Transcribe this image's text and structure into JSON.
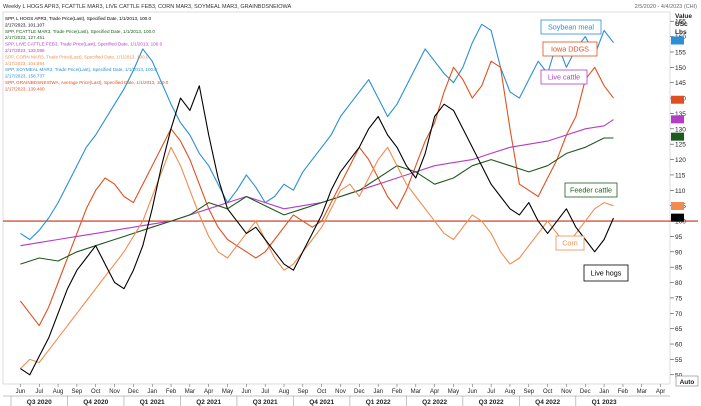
{
  "chart_data": {
    "type": "line",
    "header": {
      "left": "Weekly L HOGS APR3, FCATTLE MAR3, LIVE CATTLE FEB3, CORN MAR3, SOYMEAL MAR3, GRAINBDSNEIOWA",
      "right": "2/5/2020 - 4/4/2023 (CHI)"
    },
    "legend_lines": [
      {
        "text": "SPP, L HOGS APR3, Trade Price(Last), Specified Date, 1/1/2013, 100.0",
        "color": "#000000"
      },
      {
        "text": "2/17/2023, 101.107",
        "color": "#000000"
      },
      {
        "text": "SPP, FCATTLE MAR3, Trade Price(Last), Specified Date, 1/1/2013, 100.0",
        "color": "#1e5a1e"
      },
      {
        "text": "2/17/2023, 127.451",
        "color": "#1e5a1e"
      },
      {
        "text": "SPP, LIVE CATTLE FEB3, Trade Price(Last), Specified Date, 1/1/2013, 100.0",
        "color": "#b43cc8"
      },
      {
        "text": "2/17/2023, 133.086",
        "color": "#b43cc8"
      },
      {
        "text": "SPP, CORN MAR3, Trade Price(Last), Specified Date, 1/1/2013, 100.0",
        "color": "#f08c50"
      },
      {
        "text": "2/17/2023, 104.894",
        "color": "#f08c50"
      },
      {
        "text": "SPP, SOYMEAL MAR3, Trade Price(Last), Specified Date, 1/1/2013, 100.0",
        "color": "#2a8fd6"
      },
      {
        "text": "2/17/2023, 158.737",
        "color": "#2a8fd6"
      },
      {
        "text": "SPP, GRAINBDSNEIOWA, Average Price(Last), Specified Date, 1/1/2013, 100.0",
        "color": "#e0501e"
      },
      {
        "text": "2/17/2023, 139.460",
        "color": "#e0501e"
      }
    ],
    "y_axis": {
      "title_lines": [
        "Value",
        "USc",
        "Lbs"
      ],
      "ylim": [
        47,
        168
      ],
      "ticks": [
        50,
        55,
        60,
        65,
        70,
        75,
        80,
        85,
        90,
        95,
        100,
        105,
        110,
        115,
        120,
        125,
        130,
        135,
        140,
        145,
        150,
        155,
        160,
        165
      ]
    },
    "x_axis": {
      "months": [
        "Jun",
        "Jul",
        "Aug",
        "Sep",
        "Oct",
        "Nov",
        "Dec",
        "Jan",
        "Feb",
        "Mar",
        "Apr",
        "May",
        "Jun",
        "Jul",
        "Aug",
        "Sep",
        "Oct",
        "Nov",
        "Dec",
        "Jan",
        "Feb",
        "Mar",
        "Apr",
        "May",
        "Jun",
        "Jul",
        "Aug",
        "Sep",
        "Oct",
        "Nov",
        "Dec",
        "Jan",
        "Feb",
        "Mar",
        "Apr"
      ],
      "quarters": [
        {
          "label": "Q3 2020",
          "start": 0,
          "end": 3
        },
        {
          "label": "Q4 2020",
          "start": 3,
          "end": 6
        },
        {
          "label": "Q1 2021",
          "start": 6,
          "end": 9
        },
        {
          "label": "Q2 2021",
          "start": 9,
          "end": 12
        },
        {
          "label": "Q3 2021",
          "start": 12,
          "end": 15
        },
        {
          "label": "Q4 2021",
          "start": 15,
          "end": 18
        },
        {
          "label": "Q1 2022",
          "start": 18,
          "end": 21
        },
        {
          "label": "Q2 2022",
          "start": 21,
          "end": 24
        },
        {
          "label": "Q3 2022",
          "start": 24,
          "end": 27
        },
        {
          "label": "Q4 2022",
          "start": 27,
          "end": 30
        },
        {
          "label": "Q1 2023",
          "start": 30,
          "end": 33
        }
      ],
      "auto_label": "Auto"
    },
    "reference_line": {
      "value": 100,
      "color": "#c83214"
    },
    "annotations": [
      {
        "text": "Soybean meal",
        "color": "#2a8fd6",
        "border": "#2a8fd6"
      },
      {
        "text": "Iowa DDGS",
        "color": "#e0501e",
        "border": "#e0501e"
      },
      {
        "text": "Live cattle",
        "color": "#b43cc8",
        "border": "#b43cc8"
      },
      {
        "text": "Feeder cattle",
        "color": "#1e5a1e",
        "border": "#1e5a1e"
      },
      {
        "text": "Corn",
        "color": "#f08c50",
        "border": "#f08c50"
      },
      {
        "text": "Live hogs",
        "color": "#000000",
        "border": "#000000"
      }
    ],
    "last_values": [
      {
        "series": "Live hogs",
        "value": 101.107
      },
      {
        "series": "Feeder cattle",
        "value": 127.451
      },
      {
        "series": "Live cattle",
        "value": 133.086
      },
      {
        "series": "Corn",
        "value": 104.894
      },
      {
        "series": "Soybean meal",
        "value": 158.737
      },
      {
        "series": "Iowa DDGS",
        "value": 139.46
      }
    ],
    "series": [
      {
        "name": "Soybean meal",
        "color": "#2a8fd6",
        "x": [
          0,
          0.5,
          1,
          1.5,
          2,
          2.5,
          3,
          3.5,
          4,
          4.5,
          5,
          5.5,
          6,
          6.5,
          7,
          7.5,
          8,
          8.5,
          9,
          9.5,
          10,
          10.5,
          11,
          11.5,
          12,
          12.5,
          13,
          13.5,
          14,
          14.5,
          15,
          15.5,
          16,
          16.5,
          17,
          17.5,
          18,
          18.5,
          19,
          19.5,
          20,
          20.5,
          21,
          21.5,
          22,
          22.5,
          23,
          23.5,
          24,
          24.5,
          25,
          25.5,
          26,
          26.5,
          27,
          27.5,
          28,
          28.5,
          29,
          29.5,
          30,
          30.5,
          31,
          31.5
        ],
        "y": [
          96,
          94,
          97,
          101,
          106,
          112,
          118,
          124,
          128,
          133,
          138,
          143,
          149,
          156,
          152,
          145,
          138,
          132,
          128,
          122,
          118,
          112,
          106,
          110,
          115,
          111,
          106,
          108,
          112,
          110,
          116,
          120,
          124,
          128,
          134,
          138,
          142,
          146,
          140,
          134,
          138,
          144,
          150,
          156,
          152,
          148,
          145,
          150,
          158,
          164,
          162,
          150,
          142,
          140,
          146,
          152,
          148,
          158,
          150,
          156,
          160,
          154,
          162,
          158
        ]
      },
      {
        "name": "Iowa DDGS",
        "color": "#e0501e",
        "x": [
          0,
          0.5,
          1,
          1.5,
          2,
          2.5,
          3,
          3.5,
          4,
          4.5,
          5,
          5.5,
          6,
          6.5,
          7,
          7.5,
          8,
          8.5,
          9,
          9.5,
          10,
          10.5,
          11,
          11.5,
          12,
          12.5,
          13,
          13.5,
          14,
          14.5,
          15,
          15.5,
          16,
          16.5,
          17,
          17.5,
          18,
          18.5,
          19,
          19.5,
          20,
          20.5,
          21,
          21.5,
          22,
          22.5,
          23,
          23.5,
          24,
          24.5,
          25,
          25.5,
          26,
          26.5,
          27,
          27.5,
          28,
          28.5,
          29,
          29.5,
          30,
          30.5,
          31,
          31.5
        ],
        "y": [
          74,
          70,
          66,
          72,
          80,
          88,
          96,
          104,
          110,
          114,
          112,
          108,
          106,
          112,
          118,
          124,
          130,
          126,
          120,
          112,
          104,
          98,
          94,
          92,
          90,
          88,
          90,
          94,
          98,
          102,
          100,
          98,
          100,
          106,
          112,
          118,
          124,
          120,
          114,
          108,
          104,
          110,
          118,
          126,
          132,
          142,
          150,
          146,
          140,
          144,
          152,
          150,
          130,
          112,
          110,
          108,
          114,
          120,
          128,
          134,
          146,
          150,
          144,
          140
        ]
      },
      {
        "name": "Live cattle",
        "color": "#b43cc8",
        "x": [
          0,
          1,
          2,
          3,
          4,
          5,
          6,
          7,
          8,
          9,
          10,
          11,
          12,
          13,
          14,
          15,
          16,
          17,
          18,
          19,
          20,
          21,
          22,
          23,
          24,
          25,
          26,
          27,
          28,
          29,
          30,
          31,
          31.5
        ],
        "y": [
          92,
          93,
          94,
          95,
          96,
          97,
          98,
          99,
          100,
          102,
          104,
          106,
          108,
          106,
          104,
          105,
          106,
          108,
          110,
          112,
          114,
          116,
          118,
          119,
          120,
          122,
          124,
          125,
          126,
          128,
          130,
          131,
          133
        ]
      },
      {
        "name": "Feeder cattle",
        "color": "#1e5a1e",
        "x": [
          0,
          1,
          2,
          3,
          4,
          5,
          6,
          7,
          8,
          9,
          10,
          11,
          12,
          13,
          14,
          15,
          16,
          17,
          18,
          19,
          20,
          21,
          22,
          23,
          24,
          25,
          26,
          27,
          28,
          29,
          30,
          31,
          31.5
        ],
        "y": [
          86,
          88,
          87,
          90,
          92,
          94,
          96,
          98,
          100,
          102,
          106,
          104,
          108,
          105,
          102,
          104,
          106,
          108,
          110,
          114,
          118,
          116,
          112,
          114,
          118,
          120,
          118,
          116,
          118,
          122,
          124,
          127,
          127
        ]
      },
      {
        "name": "Corn",
        "color": "#f08c50",
        "x": [
          0,
          0.5,
          1,
          1.5,
          2,
          2.5,
          3,
          3.5,
          4,
          4.5,
          5,
          5.5,
          6,
          6.5,
          7,
          7.5,
          8,
          8.5,
          9,
          9.5,
          10,
          10.5,
          11,
          11.5,
          12,
          12.5,
          13,
          13.5,
          14,
          14.5,
          15,
          15.5,
          16,
          16.5,
          17,
          17.5,
          18,
          18.5,
          19,
          19.5,
          20,
          20.5,
          21,
          21.5,
          22,
          22.5,
          23,
          23.5,
          24,
          24.5,
          25,
          25.5,
          26,
          26.5,
          27,
          27.5,
          28,
          28.5,
          29,
          29.5,
          30,
          30.5,
          31,
          31.5
        ],
        "y": [
          52,
          55,
          54,
          58,
          62,
          66,
          70,
          74,
          78,
          82,
          86,
          90,
          95,
          100,
          108,
          116,
          124,
          118,
          110,
          102,
          95,
          90,
          88,
          92,
          96,
          100,
          94,
          88,
          84,
          86,
          90,
          94,
          98,
          104,
          110,
          112,
          108,
          114,
          120,
          124,
          118,
          112,
          108,
          104,
          100,
          96,
          94,
          98,
          102,
          100,
          96,
          90,
          86,
          88,
          92,
          96,
          100,
          96,
          92,
          96,
          100,
          104,
          106,
          105
        ]
      },
      {
        "name": "Live hogs",
        "color": "#000000",
        "x": [
          0,
          0.5,
          1,
          1.5,
          2,
          2.5,
          3,
          3.5,
          4,
          4.5,
          5,
          5.5,
          6,
          6.5,
          7,
          7.5,
          8,
          8.5,
          9,
          9.5,
          10,
          10.5,
          11,
          11.5,
          12,
          12.5,
          13,
          13.5,
          14,
          14.5,
          15,
          15.5,
          16,
          16.5,
          17,
          17.5,
          18,
          18.5,
          19,
          19.5,
          20,
          20.5,
          21,
          21.5,
          22,
          22.5,
          23,
          23.5,
          24,
          24.5,
          25,
          25.5,
          26,
          26.5,
          27,
          27.5,
          28,
          28.5,
          29,
          29.5,
          30,
          30.5,
          31,
          31.5
        ],
        "y": [
          52,
          50,
          56,
          62,
          70,
          78,
          84,
          88,
          92,
          86,
          80,
          78,
          84,
          92,
          104,
          118,
          130,
          140,
          136,
          144,
          128,
          114,
          104,
          100,
          96,
          98,
          94,
          90,
          86,
          84,
          90,
          96,
          102,
          110,
          116,
          120,
          124,
          130,
          134,
          128,
          124,
          118,
          114,
          122,
          134,
          138,
          136,
          130,
          124,
          118,
          112,
          108,
          104,
          102,
          106,
          100,
          96,
          100,
          104,
          98,
          94,
          90,
          94,
          101
        ]
      }
    ]
  }
}
